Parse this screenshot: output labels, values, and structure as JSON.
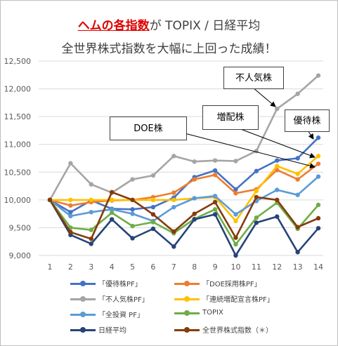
{
  "titles": {
    "line1_highlight": "ヘムの各指数",
    "line1_rest": "が TOPIX / 日経平均",
    "line2": "全世界株式指数を大幅に上回った成績！"
  },
  "callouts": {
    "fujinki": "不人気株",
    "zohai": "増配株",
    "doe": "DOE株",
    "yutai": "優待株"
  },
  "chart_data": {
    "type": "line",
    "title": "ヘムの各指数が TOPIX / 日経平均 全世界株式指数を大幅に上回った成績！",
    "xlabel": "",
    "ylabel": "",
    "x": [
      1,
      2,
      3,
      4,
      5,
      6,
      7,
      8,
      9,
      10,
      11,
      12,
      13,
      14
    ],
    "ylim": [
      9000,
      12500
    ],
    "yticks": [
      9000,
      9500,
      10000,
      10500,
      11000,
      11500,
      12000,
      12500
    ],
    "ytick_labels": [
      "9,000",
      "9,500",
      "10,000",
      "10,500",
      "11,000",
      "11,500",
      "12,000",
      "12,500"
    ],
    "grid": true,
    "legend_position": "bottom",
    "series": [
      {
        "name": "「優待株PF」",
        "color": "#4472c4",
        "values": [
          10000,
          9780,
          9990,
          9840,
          9830,
          9870,
          10040,
          10410,
          10530,
          10190,
          10520,
          10710,
          10750,
          11120
        ]
      },
      {
        "name": "「DOE採用株PF」",
        "color": "#ed7d31",
        "values": [
          10000,
          9900,
          9960,
          9990,
          10000,
          10050,
          10130,
          10370,
          10450,
          10120,
          10190,
          10540,
          10370,
          10650
        ]
      },
      {
        "name": "「不人気株PF」",
        "color": "#a5a5a5",
        "values": [
          10000,
          10660,
          10280,
          10130,
          10370,
          10440,
          10790,
          10690,
          10710,
          10700,
          10880,
          11640,
          11910,
          12240
        ]
      },
      {
        "name": "「連続増配宣言株PF」",
        "color": "#ffc000",
        "values": [
          10000,
          10000,
          10000,
          10000,
          10000,
          10000,
          10000,
          10030,
          10050,
          9620,
          10160,
          10610,
          10470,
          10790
        ]
      },
      {
        "name": "「全投資 PF」",
        "color": "#5b9bd5",
        "values": [
          10000,
          9710,
          9780,
          9830,
          9750,
          9620,
          9870,
          10030,
          10070,
          9740,
          9980,
          10180,
          10090,
          10420
        ]
      },
      {
        "name": "TOPIX",
        "color": "#70ad47",
        "values": [
          10000,
          9500,
          9460,
          9770,
          9530,
          9600,
          9400,
          9660,
          9830,
          9200,
          9680,
          9950,
          9480,
          9910
        ]
      },
      {
        "name": "日経平均",
        "color": "#264478",
        "values": [
          10000,
          9370,
          9210,
          9650,
          9310,
          9480,
          9160,
          9650,
          9740,
          9000,
          9590,
          9700,
          9060,
          9490
        ]
      },
      {
        "name": "全世界株式指数（＊）",
        "color": "#843c0c",
        "values": [
          10000,
          9420,
          9300,
          10140,
          10000,
          9740,
          9430,
          9750,
          9960,
          9320,
          10050,
          10000,
          9510,
          9670
        ]
      }
    ]
  }
}
